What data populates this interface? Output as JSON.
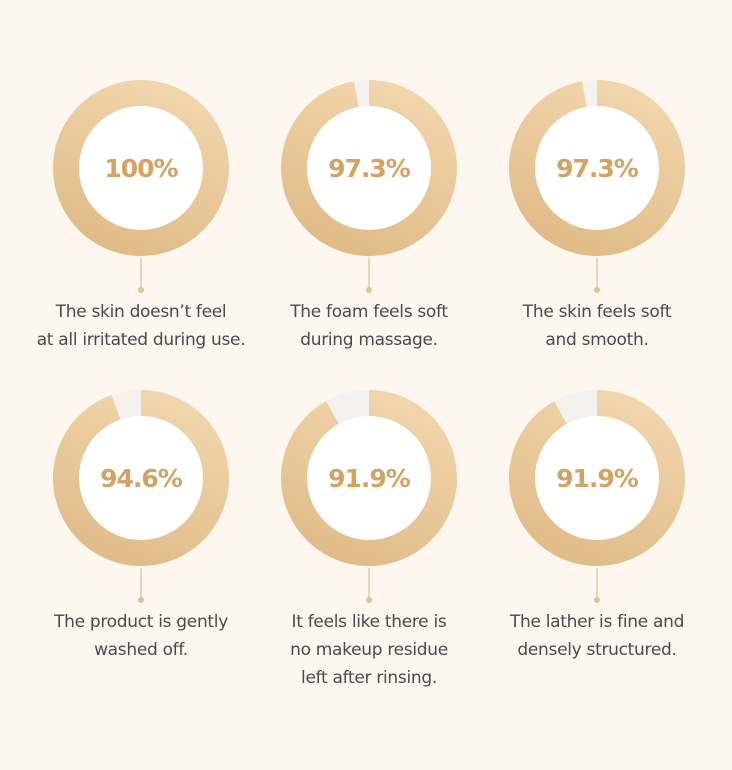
{
  "chart_data": {
    "type": "donut",
    "colors": {
      "fill_start": "#f2d7ae",
      "fill_end": "#dfba86",
      "remainder": "#f4f2ef",
      "center": "#ffffff",
      "value_text": "#d4a262",
      "background": "#fdf7f0"
    },
    "items": [
      {
        "value": 100,
        "value_label": "100%",
        "label": [
          "The skin doesn’t feel",
          "at all irritated during use."
        ]
      },
      {
        "value": 97.3,
        "value_label": "97.3%",
        "label": [
          "The foam feels soft",
          "during massage."
        ]
      },
      {
        "value": 97.3,
        "value_label": "97.3%",
        "label": [
          "The skin feels soft",
          "and smooth."
        ]
      },
      {
        "value": 94.6,
        "value_label": "94.6%",
        "label": [
          "The product is gently",
          "washed off."
        ]
      },
      {
        "value": 91.9,
        "value_label": "91.9%",
        "label": [
          "It feels like there is",
          "no makeup residue",
          "left after rinsing."
        ]
      },
      {
        "value": 91.9,
        "value_label": "91.9%",
        "label": [
          "The lather is fine and",
          "densely structured."
        ]
      }
    ]
  }
}
